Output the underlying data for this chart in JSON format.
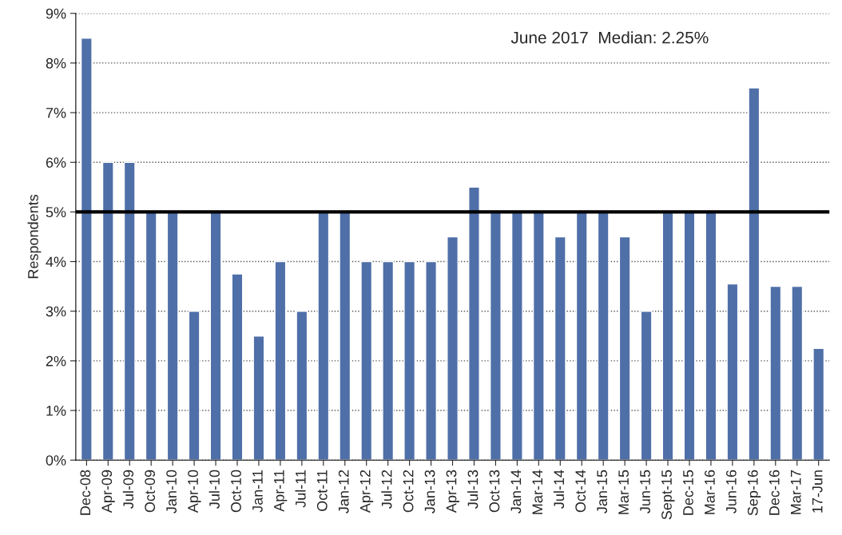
{
  "chart_data": {
    "type": "bar",
    "ylabel": "Respondents",
    "categories": [
      "Dec-08",
      "Apr-09",
      "Jul-09",
      "Oct-09",
      "Jan-10",
      "Apr-10",
      "Jul-10",
      "Oct-10",
      "Jan-11",
      "Apr-11",
      "Jul-11",
      "Oct-11",
      "Jan-12",
      "Apr-12",
      "Jul-12",
      "Oct-12",
      "Jan-13",
      "Apr-13",
      "Jul-13",
      "Oct-13",
      "Jan-14",
      "Mar-14",
      "Jul-14",
      "Oct-14",
      "Jan-15",
      "Mar-15",
      "Jun-15",
      "Sept-15",
      "Dec-15",
      "Mar-16",
      "Jun-16",
      "Sep-16",
      "Dec-16",
      "Mar-17",
      "17-Jun"
    ],
    "values": [
      8.5,
      6,
      6,
      5,
      5,
      3,
      5,
      3.75,
      2.5,
      4,
      3,
      5,
      5,
      4,
      4,
      4,
      4,
      4.5,
      5.5,
      5,
      5,
      5,
      4.5,
      5,
      5,
      4.5,
      3,
      5,
      5,
      5,
      3.55,
      7.5,
      3.5,
      3.5,
      2.25
    ],
    "color": "#4f6fa8",
    "ylim": [
      0,
      9
    ],
    "yticks": [
      {
        "value": 0,
        "label": "0%"
      },
      {
        "value": 1,
        "label": "1%"
      },
      {
        "value": 2,
        "label": "2%"
      },
      {
        "value": 3,
        "label": "3%"
      },
      {
        "value": 4,
        "label": "4%"
      },
      {
        "value": 5,
        "label": "5%"
      },
      {
        "value": 6,
        "label": "6%"
      },
      {
        "value": 7,
        "label": "7%"
      },
      {
        "value": 8,
        "label": "8%"
      },
      {
        "value": 9,
        "label": "9%"
      }
    ],
    "grid": "y",
    "ref_lines": [
      {
        "axis": "y",
        "value": 5,
        "color": "#000000"
      }
    ],
    "annotations": [
      "June 2017  Median: 2.25%"
    ]
  }
}
